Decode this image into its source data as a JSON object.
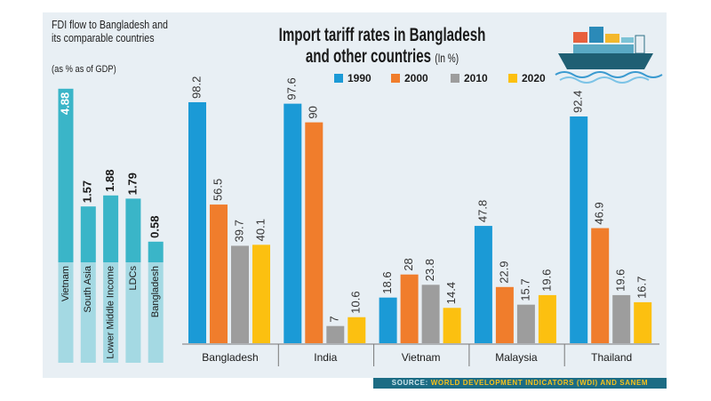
{
  "chart_data": [
    {
      "type": "bar",
      "title": "FDI flow to Bangladesh and its comparable countries",
      "subtitle": "(as % as of GDP)",
      "categories": [
        "Vietnam",
        "South Asia",
        "Lower Middle Income",
        "LDCs",
        "Bangladesh"
      ],
      "values": [
        4.88,
        1.57,
        1.88,
        1.79,
        0.58
      ],
      "color": "#3ab5c8",
      "ylim": [
        0,
        5
      ]
    },
    {
      "type": "grouped_bar",
      "title": "Import tariff rates in Bangladesh and other countries",
      "title_unit": "(In %)",
      "categories": [
        "Bangladesh",
        "India",
        "Vietnam",
        "Malaysia",
        "Thailand"
      ],
      "series": [
        {
          "name": "1990",
          "color": "#1b9ad6",
          "values": [
            98.2,
            97.6,
            18.6,
            47.8,
            92.4
          ]
        },
        {
          "name": "2000",
          "color": "#f07d2c",
          "values": [
            56.5,
            90,
            28,
            22.9,
            46.9
          ]
        },
        {
          "name": "2010",
          "color": "#9d9d9d",
          "values": [
            39.7,
            7,
            23.8,
            15.7,
            19.6
          ]
        },
        {
          "name": "2020",
          "color": "#fcc010",
          "values": [
            40.1,
            10.6,
            14.4,
            19.6,
            16.7
          ]
        }
      ],
      "ylim": [
        0,
        100
      ]
    }
  ],
  "source_label": "SOURCE:",
  "source": "WORLD DEVELOPMENT INDICATORS (WDI) AND SANEM"
}
